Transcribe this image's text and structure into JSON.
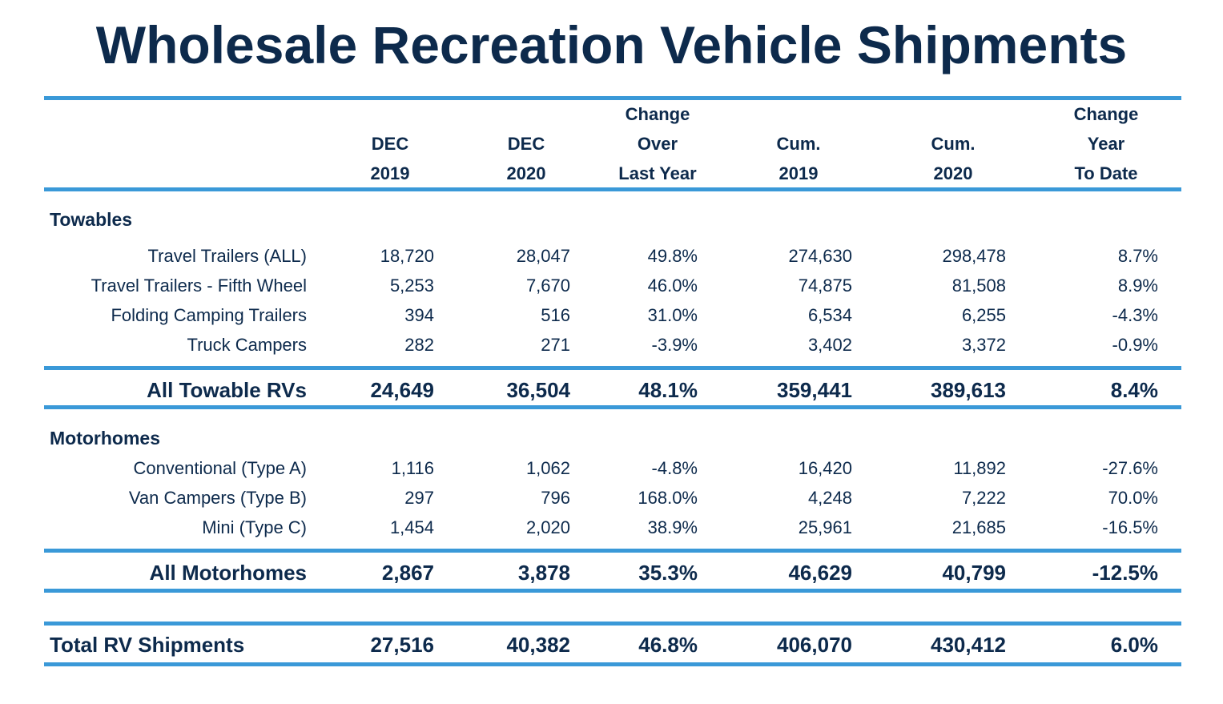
{
  "title": "Wholesale Recreation Vehicle Shipments",
  "columns": [
    {
      "l1": "",
      "l2": "DEC",
      "l3": "2019"
    },
    {
      "l1": "",
      "l2": "DEC",
      "l3": "2020"
    },
    {
      "l1": "Change",
      "l2": "Over",
      "l3": "Last Year"
    },
    {
      "l1": "",
      "l2": "Cum.",
      "l3": "2019"
    },
    {
      "l1": "",
      "l2": "Cum.",
      "l3": "2020"
    },
    {
      "l1": "Change",
      "l2": "Year",
      "l3": "To Date"
    }
  ],
  "towables": {
    "heading": "Towables",
    "rows": [
      {
        "label": "Travel Trailers (ALL)",
        "v": [
          "18,720",
          "28,047",
          "49.8%",
          "274,630",
          "298,478",
          "8.7%"
        ]
      },
      {
        "label": "Travel Trailers - Fifth Wheel",
        "v": [
          "5,253",
          "7,670",
          "46.0%",
          "74,875",
          "81,508",
          "8.9%"
        ]
      },
      {
        "label": "Folding Camping Trailers",
        "v": [
          "394",
          "516",
          "31.0%",
          "6,534",
          "6,255",
          "-4.3%"
        ]
      },
      {
        "label": "Truck Campers",
        "v": [
          "282",
          "271",
          "-3.9%",
          "3,402",
          "3,372",
          "-0.9%"
        ]
      }
    ],
    "total": {
      "label": "All Towable RVs",
      "v": [
        "24,649",
        "36,504",
        "48.1%",
        "359,441",
        "389,613",
        "8.4%"
      ]
    }
  },
  "motorhomes": {
    "heading": "Motorhomes",
    "rows": [
      {
        "label": "Conventional (Type A)",
        "v": [
          "1,116",
          "1,062",
          "-4.8%",
          "16,420",
          "11,892",
          "-27.6%"
        ]
      },
      {
        "label": "Van Campers (Type B)",
        "v": [
          "297",
          "796",
          "168.0%",
          "4,248",
          "7,222",
          "70.0%"
        ]
      },
      {
        "label": "Mini (Type C)",
        "v": [
          "1,454",
          "2,020",
          "38.9%",
          "25,961",
          "21,685",
          "-16.5%"
        ]
      }
    ],
    "total": {
      "label": "All Motorhomes",
      "v": [
        "2,867",
        "3,878",
        "35.3%",
        "46,629",
        "40,799",
        "-12.5%"
      ]
    }
  },
  "grand_total": {
    "label": "Total RV Shipments",
    "v": [
      "27,516",
      "40,382",
      "46.8%",
      "406,070",
      "430,412",
      "6.0%"
    ]
  }
}
